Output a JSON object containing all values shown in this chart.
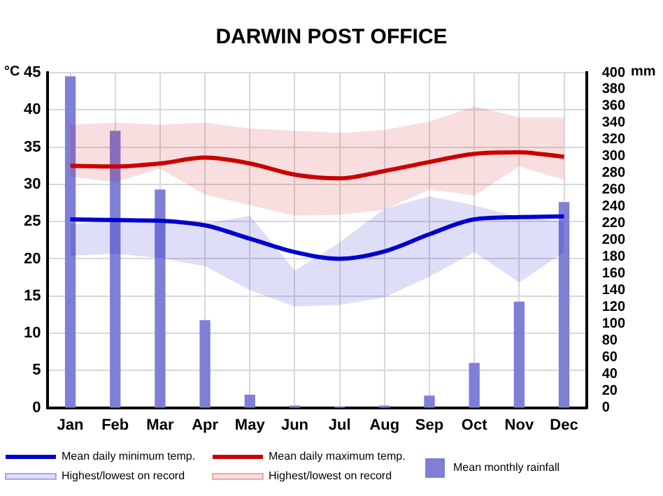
{
  "chart_data": {
    "type": "line",
    "title": "DARWIN POST OFFICE",
    "ylabel": "°C",
    "y2label": "mm",
    "categories": [
      "Jan",
      "Feb",
      "Mar",
      "Apr",
      "May",
      "Jun",
      "Jul",
      "Aug",
      "Sep",
      "Oct",
      "Nov",
      "Dec"
    ],
    "ylim": [
      0,
      45
    ],
    "yticks": [
      0,
      5,
      10,
      15,
      20,
      25,
      30,
      35,
      40,
      45
    ],
    "y2lim": [
      0,
      400
    ],
    "y2ticks": [
      0,
      20,
      40,
      60,
      80,
      100,
      120,
      140,
      160,
      180,
      200,
      220,
      240,
      260,
      280,
      300,
      320,
      340,
      360,
      380,
      400
    ],
    "grid": true,
    "legend": "bottom",
    "marker": "none",
    "line_style": "solid",
    "annotations": [
      "Highest/lowest on record",
      "Highest/lowest on record"
    ],
    "series": [
      {
        "name": "Mean daily minimum temp.",
        "color": "#0000cc",
        "values": [
          25.3,
          25.2,
          25.1,
          24.5,
          22.7,
          20.9,
          20.0,
          21.0,
          23.3,
          25.3,
          25.6,
          25.7
        ],
        "upper": [
          24.6,
          25.2,
          25.1,
          24.7,
          25.8,
          18.4,
          22.2,
          26.7,
          28.4,
          27.2,
          25.6,
          25.0
        ],
        "lower": [
          20.4,
          20.7,
          20.1,
          19.0,
          15.8,
          13.6,
          13.8,
          14.8,
          17.6,
          20.9,
          16.8,
          20.9
        ]
      },
      {
        "name": "Mean daily maximum temp.",
        "color": "#cc0000",
        "values": [
          32.5,
          32.4,
          32.8,
          33.6,
          32.8,
          31.3,
          30.8,
          31.8,
          33.0,
          34.1,
          34.3,
          33.7
        ],
        "upper": [
          38.0,
          38.3,
          38.0,
          38.3,
          37.5,
          37.2,
          36.9,
          37.3,
          38.4,
          40.5,
          39.0,
          39.0
        ],
        "lower": [
          31.0,
          30.3,
          32.1,
          28.6,
          27.2,
          25.8,
          25.9,
          26.6,
          29.3,
          28.5,
          32.4,
          30.6
        ]
      },
      {
        "type": "bar",
        "axis": "y2",
        "name": "Mean monthly rainfall",
        "color": "#7f7fd6",
        "values": [
          395,
          330,
          260,
          104,
          15,
          2,
          1,
          2,
          14,
          53,
          126,
          245
        ]
      }
    ]
  }
}
